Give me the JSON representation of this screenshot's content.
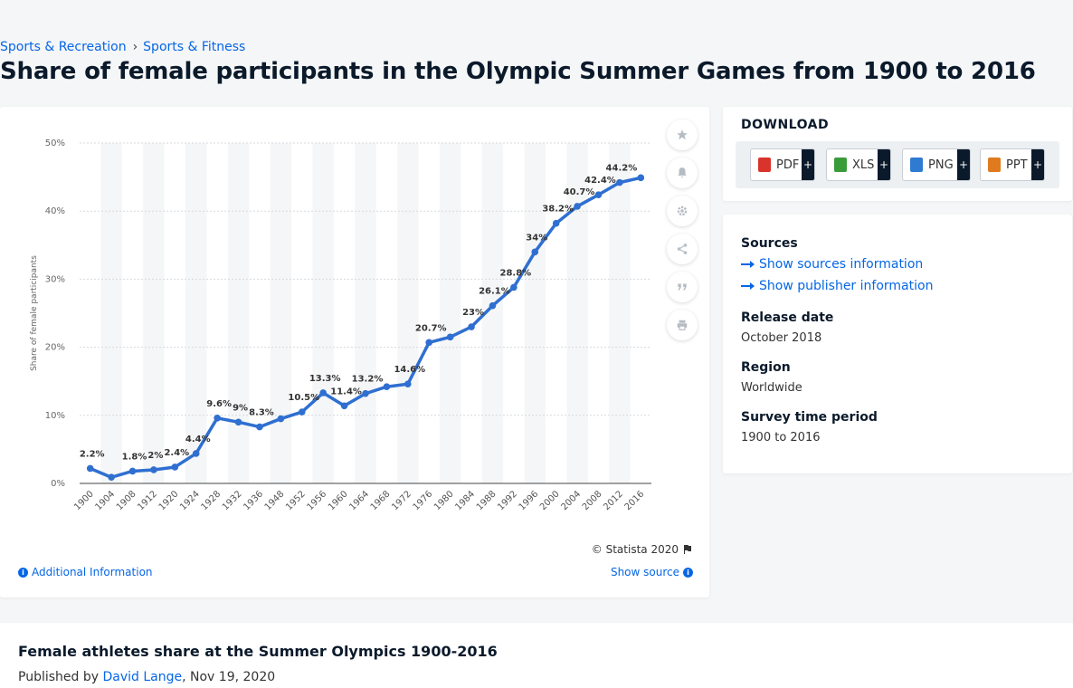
{
  "breadcrumb": [
    "Sports & Recreation",
    "Sports & Fitness"
  ],
  "page_title": "Share of female participants in the Olympic Summer Games from 1900 to 2016",
  "chart_tools": [
    "star-icon",
    "bell-icon",
    "gear-icon",
    "share-icon",
    "quote-icon",
    "print-icon"
  ],
  "chart_footer": {
    "copyright": "© Statista 2020",
    "additional_info": "Additional Information",
    "show_source": "Show source"
  },
  "download": {
    "title": "DOWNLOAD",
    "formats": [
      {
        "label": "PDF",
        "color": "#d9342b"
      },
      {
        "label": "XLS",
        "color": "#3a9b3a"
      },
      {
        "label": "PNG",
        "color": "#2f7bd1"
      },
      {
        "label": "PPT",
        "color": "#e07a1f"
      }
    ],
    "plus": "+"
  },
  "meta": {
    "sources_heading": "Sources",
    "show_sources": "Show sources information",
    "show_publisher": "Show publisher information",
    "release_heading": "Release date",
    "release_value": "October 2018",
    "region_heading": "Region",
    "region_value": "Worldwide",
    "survey_heading": "Survey time period",
    "survey_value": "1900 to 2016"
  },
  "article": {
    "title": "Female athletes share at the Summer Olympics 1900-2016",
    "published_prefix": "Published by",
    "author": "David Lange",
    "date": ", Nov 19, 2020"
  },
  "chart_data": {
    "type": "line",
    "ylabel": "Share of female participants",
    "ylim": [
      0,
      50
    ],
    "yticks": [
      "0%",
      "10%",
      "20%",
      "30%",
      "40%",
      "50%"
    ],
    "grid": true,
    "color": "#2f6fd1",
    "categories": [
      "1900",
      "1904",
      "1908",
      "1912",
      "1920",
      "1924",
      "1928",
      "1932",
      "1936",
      "1948",
      "1952",
      "1956",
      "1960",
      "1964",
      "1968",
      "1972",
      "1976",
      "1980",
      "1984",
      "1988",
      "1992",
      "1996",
      "2000",
      "2004",
      "2008",
      "2012",
      "2016"
    ],
    "values": [
      2.2,
      0.9,
      1.8,
      2.0,
      2.4,
      4.4,
      9.6,
      9.0,
      8.3,
      9.5,
      10.5,
      13.3,
      11.4,
      13.2,
      14.2,
      14.6,
      20.7,
      21.5,
      23.0,
      26.1,
      28.8,
      34.0,
      38.2,
      40.7,
      42.4,
      44.2,
      44.9
    ],
    "labels": [
      "2.2%",
      "",
      "1.8%",
      "2%",
      "2.4%",
      "4.4%",
      "9.6%",
      "9%",
      "8.3%",
      "",
      "10.5%",
      "13.3%",
      "11.4%",
      "13.2%",
      "",
      "14.6%",
      "20.7%",
      "",
      "23%",
      "26.1%",
      "28.8%",
      "34%",
      "38.2%",
      "40.7%",
      "42.4%",
      "44.2%",
      ""
    ]
  }
}
